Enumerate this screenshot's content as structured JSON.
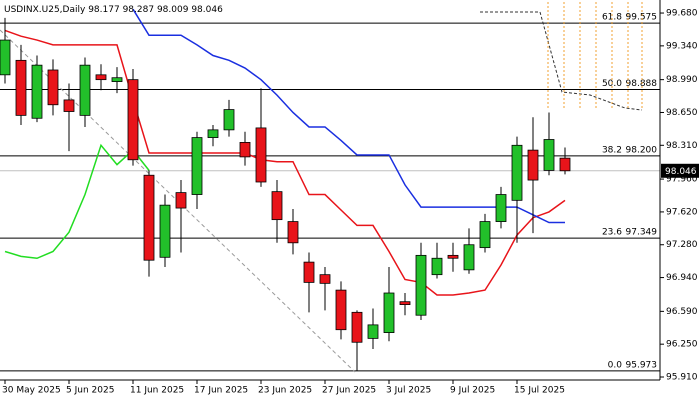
{
  "chart_data": {
    "type": "candlestick",
    "symbol": "USDINX.U25,Daily",
    "categories": [
      "30 May 2025",
      null,
      null,
      null,
      "5 Jun 2025",
      null,
      null,
      null,
      "11 Jun 2025",
      null,
      null,
      null,
      "17 Jun 2025",
      null,
      null,
      null,
      "23 Jun 2025",
      null,
      null,
      null,
      "27 Jun 2025",
      null,
      null,
      null,
      "3 Jul 2025",
      null,
      null,
      null,
      "9 Jul 2025",
      null,
      null,
      null,
      "15 Jul 2025",
      null,
      null,
      null
    ],
    "ohlc": {
      "open": [
        99.04,
        99.19,
        98.59,
        99.09,
        98.78,
        98.62,
        99.04,
        98.97,
        98.99,
        98.0,
        97.15,
        97.82,
        97.8,
        98.39,
        98.47,
        98.34,
        98.49,
        97.83,
        97.52,
        97.1,
        96.97,
        96.81,
        96.58,
        96.31,
        96.37,
        96.69,
        96.55,
        96.97,
        97.17,
        97.02,
        97.25,
        97.52,
        97.74,
        98.26,
        98.05,
        98.177
      ],
      "high": [
        99.63,
        99.35,
        99.24,
        99.2,
        98.95,
        99.22,
        99.15,
        99.12,
        99.1,
        98.05,
        97.8,
        97.95,
        98.45,
        98.52,
        98.78,
        98.45,
        98.9,
        97.95,
        97.65,
        97.2,
        97.05,
        96.9,
        96.6,
        96.62,
        97.05,
        96.78,
        97.3,
        97.3,
        97.3,
        97.45,
        97.6,
        97.88,
        98.4,
        98.6,
        98.65,
        98.287
      ],
      "low": [
        98.95,
        98.52,
        98.55,
        98.62,
        98.25,
        98.5,
        98.88,
        98.85,
        98.1,
        96.95,
        97.05,
        97.2,
        97.65,
        98.3,
        98.4,
        98.1,
        97.88,
        97.3,
        97.18,
        96.58,
        96.6,
        96.3,
        95.973,
        96.2,
        96.28,
        96.55,
        96.5,
        96.93,
        97.0,
        96.98,
        97.2,
        97.45,
        97.3,
        97.4,
        98.0,
        98.009
      ],
      "close": [
        99.4,
        98.62,
        99.14,
        98.73,
        98.66,
        99.14,
        98.99,
        99.01,
        98.16,
        97.12,
        97.69,
        97.66,
        98.39,
        98.47,
        98.68,
        98.19,
        97.93,
        97.54,
        97.3,
        96.89,
        96.88,
        96.4,
        96.27,
        96.45,
        96.78,
        96.66,
        97.17,
        97.14,
        97.14,
        97.28,
        97.52,
        97.8,
        98.31,
        97.95,
        98.37,
        98.046
      ],
      "up_color": "#22c02a",
      "down_color": "#e8141a"
    },
    "lines": [
      {
        "color": "#e8141a",
        "values": [
          99.5,
          99.44,
          99.4,
          99.35,
          99.35,
          99.35,
          99.35,
          99.35,
          98.78,
          98.23,
          98.23,
          98.23,
          98.23,
          98.23,
          98.23,
          98.23,
          98.16,
          98.14,
          98.14,
          97.8,
          97.8,
          97.64,
          97.48,
          97.48,
          97.21,
          96.92,
          96.89,
          96.76,
          96.76,
          96.78,
          96.81,
          97.07,
          97.38,
          97.56,
          97.62,
          97.74
        ]
      },
      {
        "color": "#1a2fe0",
        "values": [
          null,
          null,
          null,
          null,
          null,
          null,
          null,
          null,
          99.72,
          99.45,
          99.45,
          99.45,
          99.35,
          99.24,
          99.19,
          99.11,
          98.99,
          98.83,
          98.65,
          98.5,
          98.5,
          98.36,
          98.21,
          98.21,
          98.21,
          97.9,
          97.67,
          97.67,
          97.67,
          97.67,
          97.67,
          97.67,
          97.67,
          97.59,
          97.51,
          97.51
        ]
      },
      {
        "color": "#22dd22",
        "values": [
          97.21,
          97.16,
          97.14,
          97.21,
          97.41,
          97.8,
          98.31,
          98.11,
          98.26,
          98.05,
          null,
          null,
          null,
          null,
          null,
          null,
          null,
          null,
          null,
          null,
          null,
          null,
          null,
          null,
          null,
          null,
          null,
          null,
          null,
          null,
          null,
          null,
          null,
          null,
          null,
          null
        ]
      }
    ],
    "fib_levels": [
      {
        "ratio": 61.8,
        "price": 99.575
      },
      {
        "ratio": {
          "value": 50.0,
          "label": "50.0"
        },
        "price": 98.888
      },
      {
        "ratio": 38.2,
        "price": {
          "value": 98.2,
          "label": "98.200"
        }
      },
      {
        "ratio": 23.6,
        "price": 97.349
      },
      {
        "ratio": {
          "value": 0.0,
          "label": "0.0"
        },
        "price": 95.973
      }
    ],
    "ylim": [
      95.879,
      99.815
    ],
    "yticks": [
      {
        "value": 99.68,
        "label": "99.680"
      },
      {
        "value": 99.34,
        "label": "99.340"
      },
      {
        "value": 98.99,
        "label": "98.990"
      },
      {
        "value": 98.65,
        "label": "98.650"
      },
      {
        "value": 98.31,
        "label": "98.310"
      },
      {
        "value": 97.96,
        "label": "97.960"
      },
      {
        "value": 97.62,
        "label": "97.620"
      },
      {
        "value": 97.28,
        "label": "97.280"
      },
      {
        "value": 96.94,
        "label": "96.940"
      },
      {
        "value": 96.59,
        "label": "96.590"
      },
      {
        "value": 96.25,
        "label": "96.250"
      },
      {
        "value": 95.91,
        "label": "95.910"
      }
    ]
  }
}
